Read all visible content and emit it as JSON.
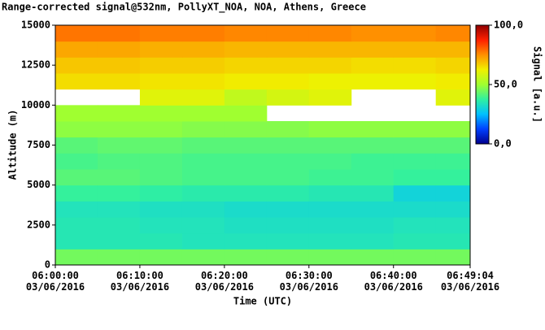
{
  "chart_data": {
    "type": "heatmap",
    "title": "Range-corrected signal@532nm, PollyXT_NOA, NOA, Athens, Greece",
    "xlabel": "Time (UTC)",
    "ylabel": "Altitude (m)",
    "colorbar_label": "Signal [a.u.]",
    "xlim": [
      0,
      49.07
    ],
    "ylim": [
      0,
      15000
    ],
    "xticks": [
      {
        "value": 0,
        "label": "06:00:00\n03/06/2016"
      },
      {
        "value": 10,
        "label": "06:10:00\n03/06/2016"
      },
      {
        "value": 20,
        "label": "06:20:00\n03/06/2016"
      },
      {
        "value": 30,
        "label": "06:30:00\n03/06/2016"
      },
      {
        "value": 40,
        "label": "06:40:00\n03/06/2016"
      },
      {
        "value": 49.07,
        "label": "06:49:04\n03/06/2016"
      }
    ],
    "yticks": [
      0,
      2500,
      5000,
      7500,
      10000,
      12500,
      15000
    ],
    "zlim": [
      0,
      100
    ],
    "zticks": [
      {
        "value": 0,
        "label": "0,0"
      },
      {
        "value": 50,
        "label": "50,0"
      },
      {
        "value": 100,
        "label": "100,0"
      }
    ],
    "colormap": [
      "#00008f",
      "#0040ff",
      "#00c0ff",
      "#30f0a0",
      "#a0ff30",
      "#f0f000",
      "#ff9000",
      "#ff2000",
      "#900000"
    ],
    "x_bins": [
      0,
      5,
      10,
      15,
      20,
      25,
      30,
      35,
      40,
      45,
      49.07
    ],
    "y_bins": [
      0,
      1000,
      2000,
      3000,
      4000,
      5000,
      6000,
      7000,
      8000,
      9000,
      10000,
      11000,
      12000,
      13000,
      14000,
      15000
    ],
    "z": [
      [
        45,
        45,
        45,
        45,
        45,
        45,
        45,
        45,
        45,
        45
      ],
      [
        35,
        35,
        35,
        34,
        34,
        34,
        34,
        34,
        35,
        35
      ],
      [
        35,
        35,
        34,
        34,
        33,
        33,
        33,
        33,
        34,
        34
      ],
      [
        34,
        34,
        33,
        33,
        32,
        32,
        32,
        32,
        32,
        32
      ],
      [
        38,
        38,
        37,
        36,
        36,
        36,
        35,
        35,
        30,
        30
      ],
      [
        42,
        42,
        41,
        40,
        40,
        40,
        39,
        39,
        38,
        38
      ],
      [
        40,
        41,
        41,
        40,
        40,
        40,
        40,
        39,
        39,
        39
      ],
      [
        42,
        43,
        43,
        42,
        42,
        42,
        42,
        42,
        42,
        42
      ],
      [
        48,
        48,
        48,
        47,
        47,
        47,
        48,
        48,
        48,
        48
      ],
      [
        50,
        50,
        50,
        50,
        50,
        null,
        null,
        null,
        null,
        null
      ],
      [
        null,
        null,
        60,
        60,
        55,
        58,
        60,
        null,
        null,
        60
      ],
      [
        65,
        65,
        64,
        64,
        63,
        63,
        62,
        62,
        62,
        63
      ],
      [
        68,
        68,
        67,
        67,
        66,
        66,
        66,
        65,
        65,
        66
      ],
      [
        72,
        72,
        71,
        71,
        70,
        70,
        70,
        70,
        70,
        70
      ],
      [
        78,
        78,
        77,
        77,
        76,
        76,
        76,
        75,
        75,
        76
      ]
    ]
  }
}
